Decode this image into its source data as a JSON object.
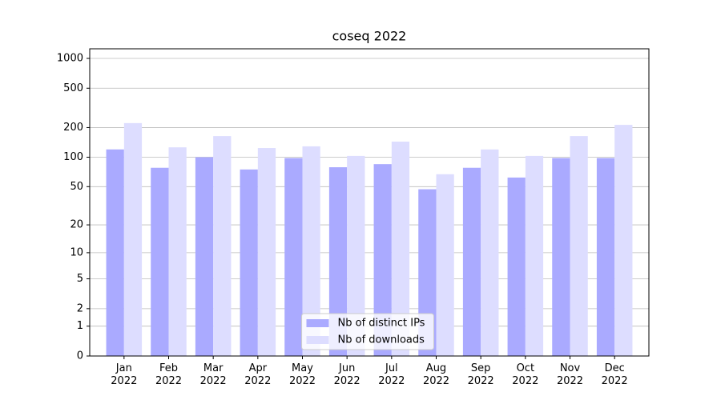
{
  "chart_data": {
    "type": "bar",
    "title": "coseq 2022",
    "yscale": "log1p",
    "categories": [
      "Jan\n2022",
      "Feb\n2022",
      "Mar\n2022",
      "Apr\n2022",
      "May\n2022",
      "Jun\n2022",
      "Jul\n2022",
      "Aug\n2022",
      "Sep\n2022",
      "Oct\n2022",
      "Nov\n2022",
      "Dec\n2022"
    ],
    "series": [
      {
        "name": "Nb of distinct IPs",
        "color": "#aaaaff",
        "values": [
          120,
          78,
          100,
          75,
          98,
          79,
          85,
          47,
          78,
          62,
          98,
          98
        ]
      },
      {
        "name": "Nb of downloads",
        "color": "#ddddff",
        "values": [
          222,
          126,
          164,
          124,
          129,
          103,
          144,
          67,
          120,
          103,
          164,
          213
        ]
      }
    ],
    "ylim": [
      0,
      1250
    ],
    "yticks": [
      0,
      1,
      2,
      5,
      10,
      20,
      50,
      100,
      200,
      500,
      1000
    ],
    "grid": true,
    "legend": "lower center"
  }
}
